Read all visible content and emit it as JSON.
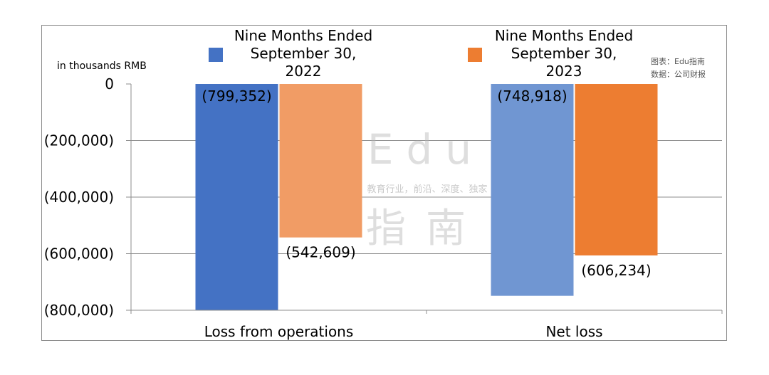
{
  "chart_data": {
    "type": "bar",
    "units_label": "in thousands RMB",
    "categories": [
      "Loss from operations",
      "Net loss"
    ],
    "series": [
      {
        "name": "Nine Months Ended September 30, 2022",
        "name_lines": [
          "Nine Months Ended",
          "September 30,",
          "2022"
        ],
        "values": [
          -799352,
          -748918
        ],
        "labels": [
          "(799,352)",
          "(748,918)"
        ],
        "colors": [
          "#4472c4",
          "#7096d2"
        ]
      },
      {
        "name": "Nine Months Ended September 30, 2023",
        "name_lines": [
          "Nine Months Ended",
          "September 30,",
          "2023"
        ],
        "values": [
          -542609,
          -606234
        ],
        "labels": [
          "(542,609)",
          "(606,234)"
        ],
        "colors": [
          "#f19c65",
          "#ed7d31"
        ]
      }
    ],
    "ylim": [
      -800000,
      0
    ],
    "yticks": [
      0,
      -200000,
      -400000,
      -600000,
      -800000
    ],
    "ytick_labels": [
      "0",
      "(200,000)",
      "(400,000)",
      "(600,000)",
      "(800,000)"
    ],
    "grid": true,
    "legend_position": "top"
  },
  "source_note": [
    "图表：Edu指南",
    "数据：公司财报"
  ],
  "watermark": {
    "line1": "Edu",
    "line2": "教育行业，前沿、深度、独家",
    "line3": "指南"
  }
}
